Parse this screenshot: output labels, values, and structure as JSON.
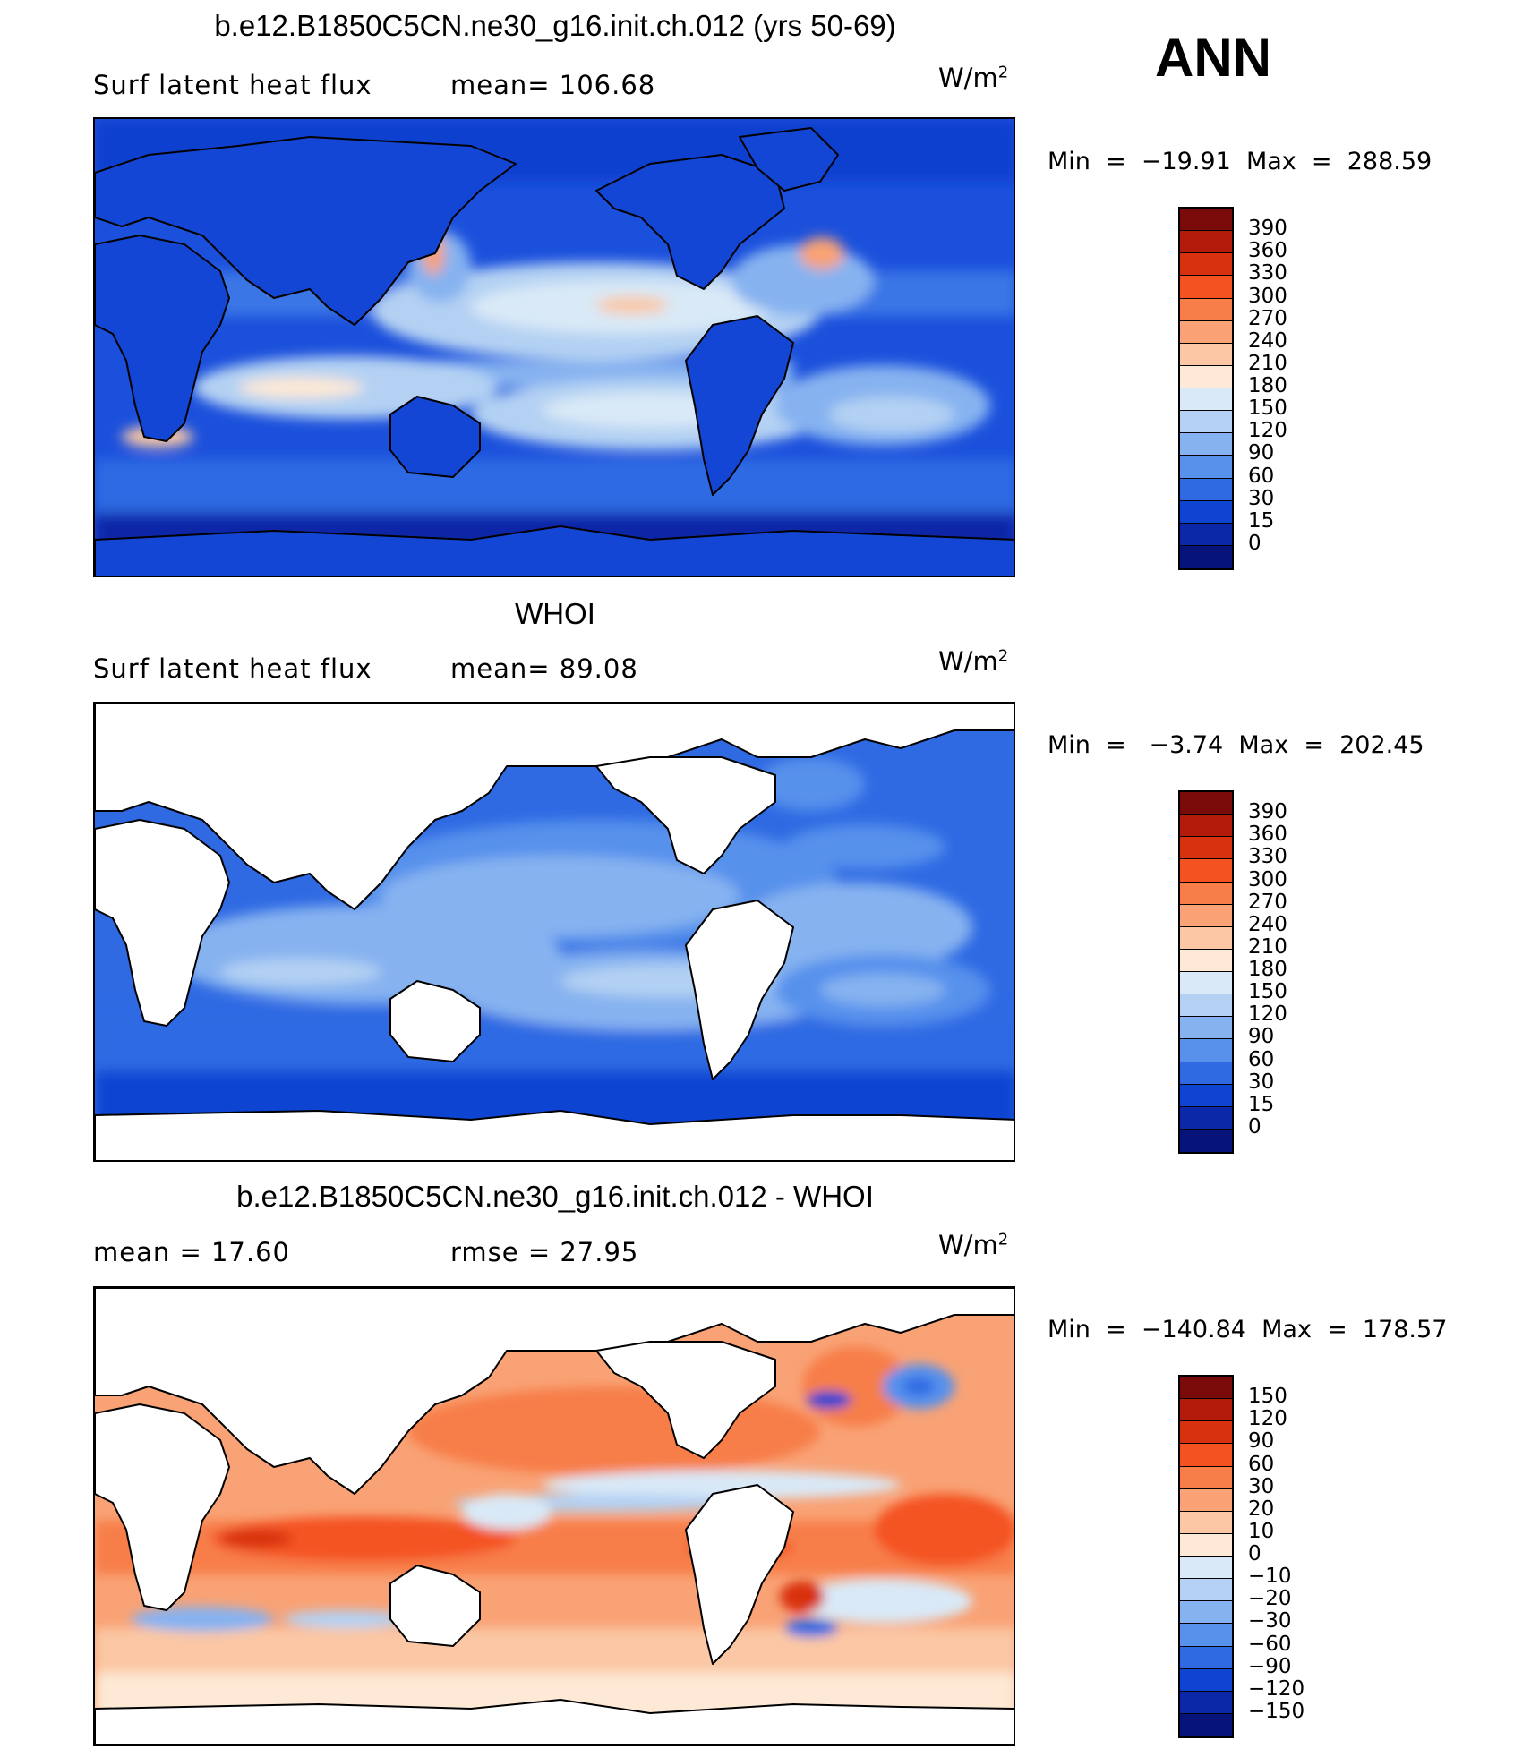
{
  "season": "ANN",
  "units_text": "W/m",
  "units_power": "2",
  "panels": [
    {
      "id": "model",
      "title": "b.e12.B1850C5CN.ne30_g16.init.ch.012 (yrs 50-69)",
      "left_label": "Surf latent heat flux",
      "mid_label": "mean=  106.68",
      "minmax": "Min  =  −19.91  Max  =  288.59",
      "colorbar": {
        "labels": [
          "390",
          "360",
          "330",
          "300",
          "270",
          "240",
          "210",
          "180",
          "150",
          "120",
          "90",
          "60",
          "30",
          "15",
          "0"
        ],
        "colors": [
          "#7b0a0a",
          "#b31b0b",
          "#d8310f",
          "#f45220",
          "#f77e48",
          "#f9a275",
          "#fbc7a4",
          "#fde9d6",
          "#d9e9f7",
          "#b4d1f3",
          "#86b2f0",
          "#5791ec",
          "#2f6ae3",
          "#0f44d2",
          "#0a28a8",
          "#05137a"
        ]
      }
    },
    {
      "id": "obs",
      "title": "WHOI",
      "left_label": "Surf latent heat flux",
      "mid_label": "mean=   89.08",
      "minmax": "Min  =   −3.74  Max  =  202.45",
      "colorbar": {
        "labels": [
          "390",
          "360",
          "330",
          "300",
          "270",
          "240",
          "210",
          "180",
          "150",
          "120",
          "90",
          "60",
          "30",
          "15",
          "0"
        ],
        "colors": [
          "#7b0a0a",
          "#b31b0b",
          "#d8310f",
          "#f45220",
          "#f77e48",
          "#f9a275",
          "#fbc7a4",
          "#fde9d6",
          "#d9e9f7",
          "#b4d1f3",
          "#86b2f0",
          "#5791ec",
          "#2f6ae3",
          "#0f44d2",
          "#0a28a8",
          "#05137a"
        ]
      }
    },
    {
      "id": "diff",
      "title": "b.e12.B1850C5CN.ne30_g16.init.ch.012 - WHOI",
      "left_label": "mean =    17.60",
      "mid_label": "rmse =    27.95",
      "minmax": "Min  =  −140.84  Max  =  178.57",
      "colorbar": {
        "labels": [
          "150",
          "120",
          "90",
          "60",
          "30",
          "20",
          "10",
          "0",
          "−10",
          "−20",
          "−30",
          "−60",
          "−90",
          "−120",
          "−150"
        ],
        "colors": [
          "#7b0a0a",
          "#b31b0b",
          "#d8310f",
          "#f45220",
          "#f77e48",
          "#f9a275",
          "#fbc7a4",
          "#fde9d6",
          "#d9e9f7",
          "#b4d1f3",
          "#86b2f0",
          "#5791ec",
          "#2f6ae3",
          "#0f44d2",
          "#0a28a8",
          "#05137a"
        ]
      }
    }
  ]
}
